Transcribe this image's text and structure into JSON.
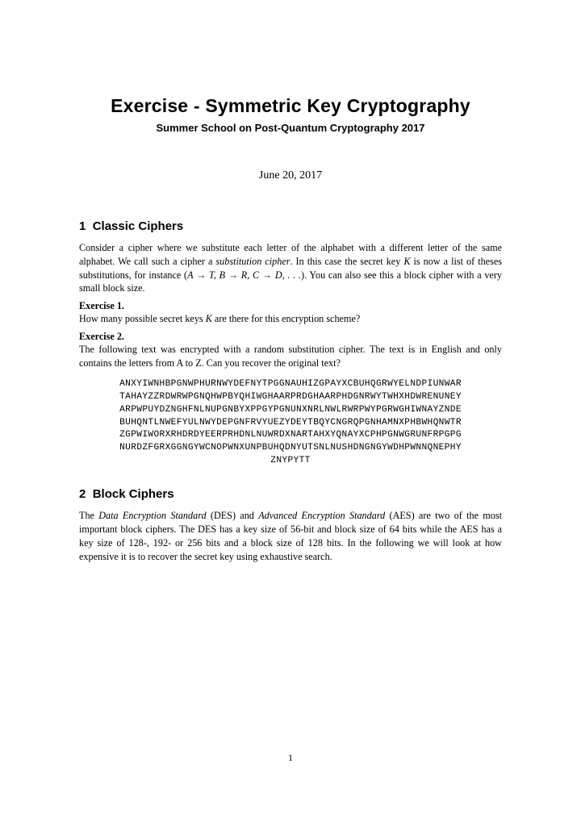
{
  "title": "Exercise - Symmetric Key Cryptography",
  "subtitle": "Summer School on Post-Quantum Cryptography 2017",
  "date": "June 20, 2017",
  "section1": {
    "num": "1",
    "title": "Classic Ciphers",
    "intro_a": "Consider a cipher where we substitute each letter of the alphabet with a different letter of the same alphabet. We call such a cipher a ",
    "intro_em": "substitution cipher",
    "intro_b": ". In this case the secret key ",
    "K1": "K",
    "intro_c": " is now a list of theses substitutions, for instance (",
    "map": "A → T, B → R, C → D, . . .",
    "intro_d": "). You can also see this a block cipher with a very small block size.",
    "ex1_label": "Exercise 1.",
    "ex1_a": "How many possible secret keys ",
    "ex1_K": "K",
    "ex1_b": " are there for this encryption scheme?",
    "ex2_label": "Exercise 2.",
    "ex2_body": "The following text was encrypted with a random substitution cipher. The text is in English and only contains the letters from A to Z. Can you recover the original text?",
    "cipher_l1": "ANXYIWNHBPGNWPHURNWYDEFNYTPGGNAUHIZGPAYXCBUHQGRWYELNDPIUNWAR",
    "cipher_l2": "TAHAYZZRDWRWPGNQHWPBYQHIWGHAARPRDGHAARPHDGNRWYTWHXHDWRENUNEY",
    "cipher_l3": "ARPWPUYDZNGHFNLNUPGNBYXPPGYPGNUNXNRLNWLRWRPWYPGRWGHIWNAYZNDE",
    "cipher_l4": "BUHQNTLNWEFYULNWYDEPGNFRVYUEZYDEYTBQYCNGRQPGNHAMNXPHBWHQNWTR",
    "cipher_l5": "ZGPWIWORXRHDRDYEERPRHDNLNUWRDXNARTAHXYQNAYXCPHPGNWGRUNFRPGPG",
    "cipher_l6": "NURDZFGRXGGNGYWCNOPWNXUNPBUHQDNYUTSNLNUSHDNGNGYWDHPWNNQNEPHY",
    "cipher_l7": "ZNYPYTT"
  },
  "section2": {
    "num": "2",
    "title": "Block Ciphers",
    "body_a": "The ",
    "em1": "Data Encryption Standard",
    "body_b": " (DES) and ",
    "em2": "Advanced Encryption Standard",
    "body_c": " (AES) are two of the most important block ciphers. The DES has a key size of 56-bit and block size of 64 bits while the AES has a key size of 128-, 192- or 256 bits and a block size of 128 bits. In the following we will look at how expensive it is to recover the secret key using exhaustive search."
  },
  "pagenum": "1"
}
